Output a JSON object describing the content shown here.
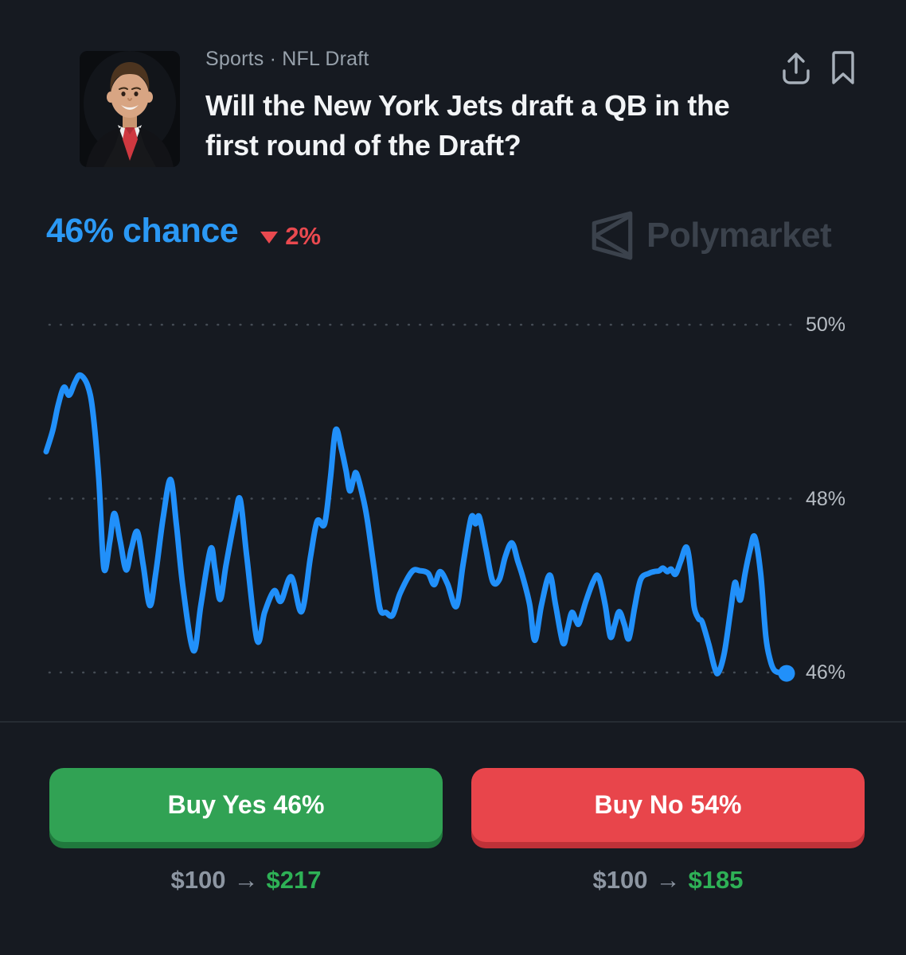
{
  "header": {
    "category": "Sports · NFL Draft",
    "title": "Will the New York Jets draft a QB in the first round of the Draft?"
  },
  "price": {
    "chance": "46% chance",
    "change_direction": "down",
    "change": "2%"
  },
  "watermark": {
    "brand": "Polymarket"
  },
  "chart_data": {
    "type": "line",
    "series_name": "Yes price",
    "ylabel": "",
    "yticks": [
      "50%",
      "48%",
      "46%"
    ],
    "ytick_values": [
      50,
      48,
      46
    ],
    "ylim": [
      45.8,
      50.3
    ],
    "grid": "dotted horizontal",
    "legend": "none",
    "line_color": "#2190fa",
    "current_value_pct": 46,
    "points": [
      [
        0.0,
        48.54
      ],
      [
        0.009,
        48.79
      ],
      [
        0.016,
        49.07
      ],
      [
        0.024,
        49.28
      ],
      [
        0.031,
        49.19
      ],
      [
        0.039,
        49.34
      ],
      [
        0.046,
        49.42
      ],
      [
        0.056,
        49.3
      ],
      [
        0.063,
        49.0
      ],
      [
        0.071,
        48.24
      ],
      [
        0.078,
        47.2
      ],
      [
        0.086,
        47.51
      ],
      [
        0.092,
        47.83
      ],
      [
        0.1,
        47.51
      ],
      [
        0.108,
        47.18
      ],
      [
        0.115,
        47.42
      ],
      [
        0.123,
        47.62
      ],
      [
        0.131,
        47.24
      ],
      [
        0.14,
        46.77
      ],
      [
        0.148,
        47.14
      ],
      [
        0.158,
        47.78
      ],
      [
        0.168,
        48.22
      ],
      [
        0.176,
        47.69
      ],
      [
        0.185,
        46.96
      ],
      [
        0.199,
        46.25
      ],
      [
        0.209,
        46.78
      ],
      [
        0.222,
        47.42
      ],
      [
        0.228,
        47.19
      ],
      [
        0.235,
        46.84
      ],
      [
        0.243,
        47.24
      ],
      [
        0.255,
        47.78
      ],
      [
        0.262,
        47.99
      ],
      [
        0.271,
        47.33
      ],
      [
        0.285,
        46.37
      ],
      [
        0.295,
        46.69
      ],
      [
        0.308,
        46.94
      ],
      [
        0.317,
        46.82
      ],
      [
        0.331,
        47.1
      ],
      [
        0.345,
        46.7
      ],
      [
        0.357,
        47.33
      ],
      [
        0.366,
        47.74
      ],
      [
        0.376,
        47.71
      ],
      [
        0.384,
        48.24
      ],
      [
        0.391,
        48.79
      ],
      [
        0.399,
        48.56
      ],
      [
        0.405,
        48.32
      ],
      [
        0.41,
        48.09
      ],
      [
        0.415,
        48.22
      ],
      [
        0.419,
        48.29
      ],
      [
        0.428,
        48.01
      ],
      [
        0.434,
        47.74
      ],
      [
        0.443,
        47.19
      ],
      [
        0.451,
        46.73
      ],
      [
        0.459,
        46.69
      ],
      [
        0.468,
        46.66
      ],
      [
        0.478,
        46.91
      ],
      [
        0.494,
        47.16
      ],
      [
        0.505,
        47.17
      ],
      [
        0.516,
        47.14
      ],
      [
        0.524,
        47.01
      ],
      [
        0.532,
        47.16
      ],
      [
        0.542,
        47.02
      ],
      [
        0.554,
        46.76
      ],
      [
        0.563,
        47.24
      ],
      [
        0.574,
        47.78
      ],
      [
        0.58,
        47.71
      ],
      [
        0.585,
        47.79
      ],
      [
        0.594,
        47.42
      ],
      [
        0.603,
        47.05
      ],
      [
        0.612,
        47.07
      ],
      [
        0.62,
        47.33
      ],
      [
        0.629,
        47.49
      ],
      [
        0.637,
        47.28
      ],
      [
        0.644,
        47.09
      ],
      [
        0.653,
        46.78
      ],
      [
        0.66,
        46.37
      ],
      [
        0.669,
        46.78
      ],
      [
        0.68,
        47.12
      ],
      [
        0.688,
        46.78
      ],
      [
        0.698,
        46.34
      ],
      [
        0.704,
        46.5
      ],
      [
        0.71,
        46.69
      ],
      [
        0.716,
        46.59
      ],
      [
        0.72,
        46.57
      ],
      [
        0.729,
        46.82
      ],
      [
        0.739,
        47.05
      ],
      [
        0.746,
        47.1
      ],
      [
        0.755,
        46.78
      ],
      [
        0.762,
        46.41
      ],
      [
        0.768,
        46.55
      ],
      [
        0.774,
        46.7
      ],
      [
        0.781,
        46.55
      ],
      [
        0.787,
        46.39
      ],
      [
        0.795,
        46.76
      ],
      [
        0.803,
        47.07
      ],
      [
        0.814,
        47.14
      ],
      [
        0.821,
        47.16
      ],
      [
        0.828,
        47.17
      ],
      [
        0.833,
        47.2
      ],
      [
        0.839,
        47.16
      ],
      [
        0.844,
        47.19
      ],
      [
        0.85,
        47.13
      ],
      [
        0.857,
        47.28
      ],
      [
        0.865,
        47.44
      ],
      [
        0.871,
        47.14
      ],
      [
        0.875,
        46.76
      ],
      [
        0.881,
        46.62
      ],
      [
        0.886,
        46.58
      ],
      [
        0.895,
        46.32
      ],
      [
        0.903,
        46.05
      ],
      [
        0.908,
        46.0
      ],
      [
        0.916,
        46.23
      ],
      [
        0.924,
        46.69
      ],
      [
        0.93,
        47.03
      ],
      [
        0.934,
        46.92
      ],
      [
        0.938,
        46.84
      ],
      [
        0.944,
        47.14
      ],
      [
        0.951,
        47.42
      ],
      [
        0.957,
        47.56
      ],
      [
        0.965,
        47.14
      ],
      [
        0.972,
        46.41
      ],
      [
        0.978,
        46.14
      ],
      [
        0.983,
        46.03
      ],
      [
        0.989,
        46.0
      ],
      [
        0.995,
        45.99
      ],
      [
        1.0,
        45.99
      ]
    ]
  },
  "actions": {
    "buy_yes": {
      "label": "Buy Yes 46%",
      "from": "$100",
      "arrow": "→",
      "to": "$217"
    },
    "buy_no": {
      "label": "Buy No 54%",
      "from": "$100",
      "arrow": "→",
      "to": "$185"
    }
  },
  "colors": {
    "background": "#161a21",
    "chance_blue": "#2b99f5",
    "change_red": "#e9494f",
    "line_blue": "#2190fa",
    "buy_yes_green": "#31a254",
    "buy_no_red": "#e8454b",
    "conversion_green": "#2eb156"
  }
}
